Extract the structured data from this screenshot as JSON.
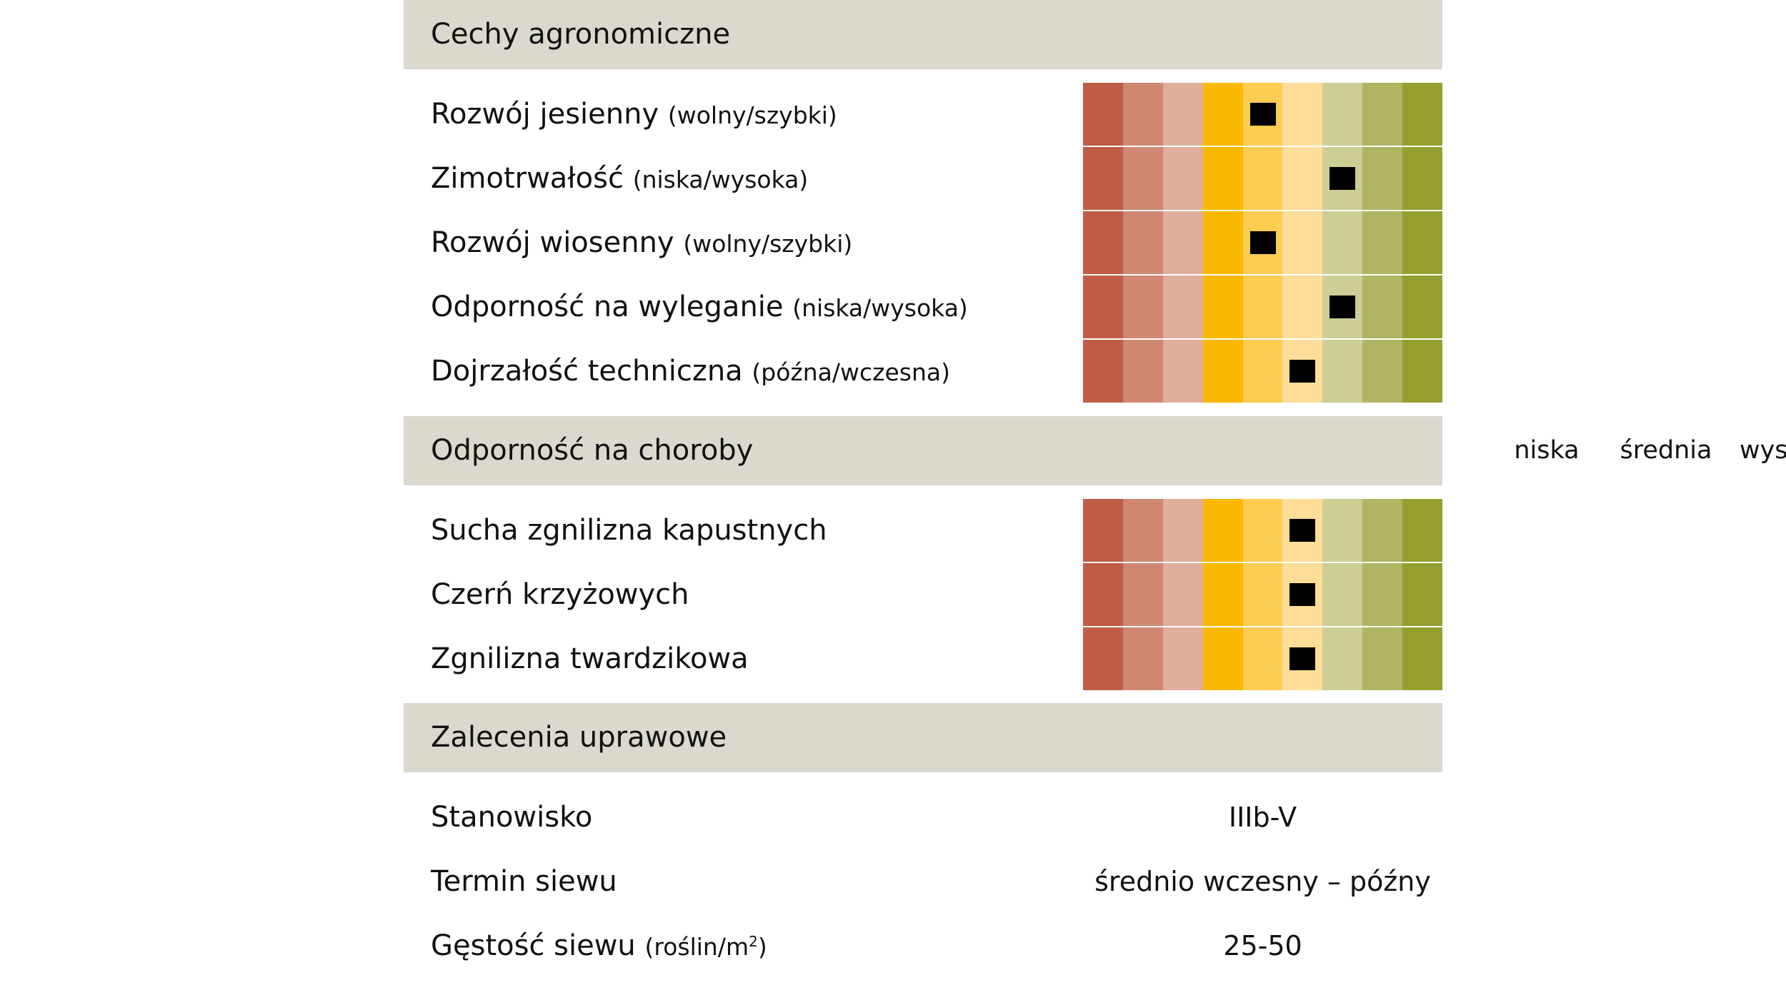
{
  "colors": {
    "header_bg": "#dbd9ce",
    "scale": [
      "#bf5c45",
      "#d08772",
      "#e0ae9c",
      "#fbb800",
      "#fdcc52",
      "#fedd98",
      "#ccce96",
      "#b0b562",
      "#949f2d"
    ],
    "marker": "#000000"
  },
  "scale_steps": 9,
  "agronomic": {
    "title": "Cechy agronomiczne",
    "rows": [
      {
        "label": "Rozwój jesienny",
        "note": "(wolny/szybki)",
        "rating": 5
      },
      {
        "label": "Zimotrwałość",
        "note": "(niska/wysoka)",
        "rating": 7
      },
      {
        "label": "Rozwój wiosenny",
        "note": "(wolny/szybki)",
        "rating": 5
      },
      {
        "label": "Odporność na wyleganie",
        "note": "(niska/wysoka)",
        "rating": 7
      },
      {
        "label": "Dojrzałość techniczna",
        "note": "(późna/wczesna)",
        "rating": 6
      }
    ]
  },
  "disease": {
    "title": "Odporność na choroby",
    "scale_labels": [
      "niska",
      "średnia",
      "wysoka"
    ],
    "rows": [
      {
        "label": "Sucha zgnilizna kapustnych",
        "rating": 6
      },
      {
        "label": "Czerń krzyżowych",
        "rating": 6
      },
      {
        "label": "Zgnilizna twardzikowa",
        "rating": 6
      }
    ]
  },
  "recommendations": {
    "title": "Zalecenia uprawowe",
    "rows": [
      {
        "label": "Stanowisko",
        "note": "",
        "value": "IIIb-V"
      },
      {
        "label": "Termin siewu",
        "note": "",
        "value": "średnio wczesny – późny"
      },
      {
        "label": "Gęstość siewu",
        "note": "(roślin/m",
        "note_sup": "2",
        "note_end": ")",
        "value": "25-50"
      }
    ]
  }
}
